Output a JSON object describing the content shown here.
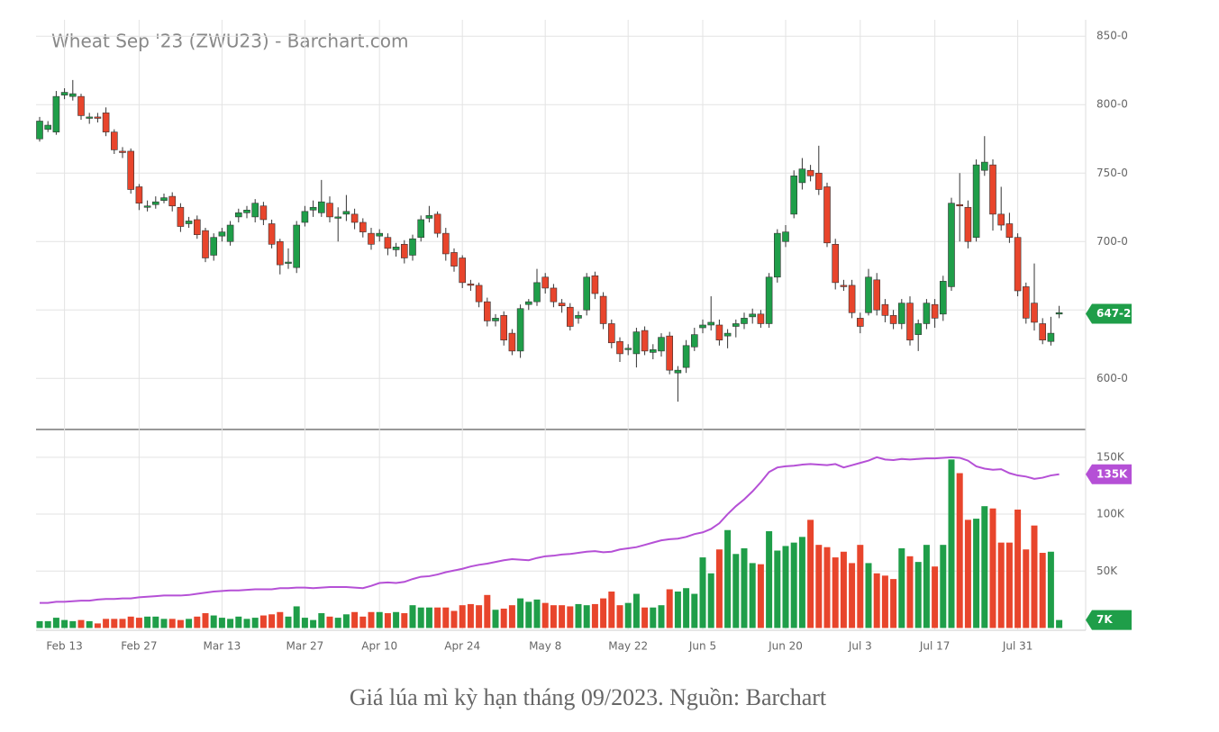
{
  "chart_data": {
    "type": "candlestick",
    "title": "Wheat Sep '23 (ZWU23) - Barchart.com",
    "categories": [
      null,
      null,
      null,
      "Feb 13",
      null,
      null,
      null,
      null,
      null,
      null,
      null,
      null,
      "Feb 27",
      null,
      null,
      null,
      null,
      null,
      null,
      null,
      null,
      null,
      "Mar 13",
      null,
      null,
      null,
      null,
      null,
      null,
      null,
      null,
      null,
      "Mar 27",
      null,
      null,
      null,
      null,
      null,
      null,
      null,
      null,
      "Apr 10",
      null,
      null,
      null,
      null,
      null,
      null,
      null,
      null,
      null,
      "Apr 24",
      null,
      null,
      null,
      null,
      null,
      null,
      null,
      null,
      null,
      "May 8",
      null,
      null,
      null,
      null,
      null,
      null,
      null,
      null,
      null,
      "May 22",
      null,
      null,
      null,
      null,
      null,
      null,
      null,
      null,
      "Jun 5",
      null,
      null,
      null,
      null,
      null,
      null,
      null,
      null,
      null,
      "Jun 20",
      null,
      null,
      null,
      null,
      null,
      null,
      null,
      null,
      "Jul 3",
      null,
      null,
      null,
      null,
      null,
      null,
      null,
      null,
      "Jul 17",
      null,
      null,
      null,
      null,
      null,
      null,
      null,
      null,
      null,
      "Jul 31",
      null,
      null,
      null,
      null,
      null
    ],
    "open": [
      775,
      782,
      780,
      807,
      806,
      806,
      790,
      791,
      794,
      780,
      766,
      766,
      740,
      725,
      727,
      730,
      733,
      725,
      713,
      716,
      708,
      690,
      704,
      700,
      718,
      721,
      718,
      726,
      713,
      700,
      684,
      681,
      714,
      723,
      721,
      728,
      717,
      720,
      720,
      714,
      706,
      704,
      703,
      694,
      698,
      690,
      703,
      717,
      720,
      706,
      692,
      688,
      669,
      668,
      656,
      642,
      646,
      633,
      620,
      654,
      656,
      674,
      666,
      655,
      652,
      644,
      650,
      675,
      660,
      640,
      627,
      621,
      618,
      635,
      619,
      620,
      631,
      604,
      608,
      623,
      637,
      639,
      639,
      631,
      638,
      640,
      645,
      647,
      640,
      674,
      700,
      720,
      743,
      752,
      750,
      740,
      698,
      668,
      668,
      644,
      648,
      672,
      654,
      646,
      640,
      655,
      632,
      640,
      654,
      647,
      667,
      727,
      725,
      703,
      752,
      756,
      720,
      713,
      703,
      667,
      655,
      640,
      627,
      647
    ],
    "high": [
      791,
      788,
      810,
      812,
      818,
      808,
      794,
      794,
      798,
      782,
      769,
      768,
      742,
      730,
      733,
      735,
      736,
      728,
      718,
      719,
      710,
      706,
      710,
      715,
      724,
      726,
      731,
      729,
      716,
      702,
      695,
      715,
      726,
      730,
      745,
      733,
      725,
      734,
      724,
      717,
      710,
      709,
      706,
      699,
      701,
      705,
      719,
      726,
      722,
      710,
      695,
      690,
      672,
      670,
      659,
      647,
      649,
      636,
      654,
      658,
      680,
      677,
      669,
      658,
      655,
      649,
      677,
      678,
      663,
      643,
      630,
      625,
      637,
      638,
      625,
      633,
      634,
      609,
      628,
      637,
      643,
      660,
      643,
      636,
      643,
      648,
      651,
      650,
      677,
      709,
      712,
      752,
      761,
      756,
      770,
      743,
      702,
      672,
      672,
      648,
      680,
      677,
      658,
      650,
      658,
      660,
      643,
      658,
      658,
      675,
      732,
      750,
      730,
      760,
      777,
      760,
      740,
      721,
      706,
      670,
      684,
      644,
      645,
      653
    ],
    "low": [
      773,
      780,
      778,
      804,
      803,
      789,
      786,
      787,
      777,
      764,
      761,
      735,
      723,
      722,
      724,
      728,
      722,
      707,
      710,
      702,
      685,
      686,
      700,
      697,
      714,
      717,
      714,
      712,
      695,
      676,
      680,
      677,
      711,
      718,
      718,
      714,
      700,
      715,
      709,
      703,
      694,
      700,
      690,
      689,
      684,
      686,
      700,
      714,
      703,
      686,
      678,
      666,
      664,
      652,
      638,
      638,
      624,
      617,
      615,
      650,
      653,
      662,
      652,
      648,
      635,
      640,
      646,
      658,
      636,
      622,
      612,
      617,
      608,
      617,
      614,
      616,
      603,
      583,
      604,
      620,
      633,
      635,
      624,
      622,
      630,
      636,
      640,
      637,
      637,
      670,
      696,
      717,
      738,
      744,
      734,
      696,
      665,
      664,
      644,
      633,
      646,
      646,
      641,
      636,
      636,
      624,
      620,
      636,
      637,
      642,
      664,
      700,
      695,
      700,
      748,
      708,
      708,
      699,
      660,
      640,
      635,
      625,
      624,
      644
    ],
    "close": [
      788,
      785,
      806,
      809,
      808,
      792,
      791,
      790,
      780,
      767,
      765,
      738,
      728,
      726,
      729,
      732,
      726,
      711,
      715,
      705,
      688,
      703,
      707,
      712,
      721,
      723,
      728,
      716,
      698,
      683,
      685,
      712,
      722,
      725,
      729,
      718,
      718,
      722,
      714,
      707,
      698,
      706,
      695,
      696,
      688,
      702,
      716,
      719,
      706,
      691,
      682,
      670,
      668,
      656,
      642,
      644,
      628,
      620,
      651,
      656,
      670,
      666,
      656,
      653,
      638,
      646,
      674,
      662,
      640,
      626,
      618,
      622,
      634,
      620,
      621,
      630,
      606,
      606,
      624,
      632,
      639,
      641,
      628,
      633,
      640,
      644,
      647,
      640,
      674,
      706,
      707,
      748,
      753,
      748,
      738,
      699,
      670,
      667,
      648,
      638,
      674,
      650,
      646,
      640,
      655,
      628,
      640,
      655,
      644,
      671,
      728,
      726,
      700,
      756,
      758,
      720,
      712,
      703,
      664,
      644,
      641,
      628,
      633,
      648
    ],
    "up_color": "#1f9e49",
    "down_color": "#e8452c",
    "ylim": [
      564,
      862
    ],
    "yticks": [
      {
        "value": 600,
        "label": "600-0"
      },
      {
        "value": 650,
        "label": "650-0"
      },
      {
        "value": 700,
        "label": "700-0"
      },
      {
        "value": 750,
        "label": "750-0"
      },
      {
        "value": 800,
        "label": "800-0"
      },
      {
        "value": 850,
        "label": "850-0"
      }
    ],
    "price_badge": {
      "value": 647.25,
      "label": "647-2"
    },
    "volume": [
      6000,
      6000,
      9000,
      7000,
      6000,
      7000,
      6000,
      4000,
      8000,
      8000,
      8000,
      10000,
      9000,
      10000,
      10000,
      8000,
      8000,
      7000,
      8000,
      10000,
      13000,
      11000,
      9000,
      8000,
      10000,
      8000,
      9000,
      11000,
      12000,
      14000,
      10000,
      19000,
      9000,
      7000,
      13000,
      10000,
      9000,
      12000,
      14000,
      10000,
      14000,
      14000,
      13000,
      14000,
      13000,
      20000,
      18000,
      18000,
      18000,
      18000,
      15000,
      20000,
      21000,
      20000,
      29000,
      16000,
      17000,
      20000,
      26000,
      23000,
      25000,
      22000,
      20000,
      20000,
      19000,
      21000,
      20000,
      21000,
      26000,
      32000,
      20000,
      22000,
      30000,
      18000,
      18000,
      20000,
      34000,
      32000,
      35000,
      30000,
      62000,
      48000,
      69000,
      86000,
      65000,
      70000,
      57000,
      56000,
      85000,
      68000,
      72000,
      75000,
      80000,
      95000,
      73000,
      71000,
      62000,
      67000,
      57000,
      73000,
      57000,
      48000,
      46000,
      43000,
      70000,
      63000,
      58000,
      73000,
      54000,
      73000,
      148000,
      136000,
      95000,
      96000,
      107000,
      105000,
      75000,
      75000,
      104000,
      69000,
      90000,
      66000,
      67000,
      7000
    ],
    "open_interest": [
      22000,
      22000,
      23000,
      23000,
      23500,
      24000,
      24000,
      25000,
      25500,
      25500,
      26000,
      26000,
      27000,
      27500,
      28000,
      28500,
      28500,
      28500,
      29000,
      30000,
      31000,
      32000,
      32500,
      33000,
      33000,
      33500,
      34000,
      34000,
      34000,
      35000,
      35000,
      35500,
      35500,
      35000,
      35500,
      36000,
      36000,
      36000,
      35500,
      35000,
      37000,
      39500,
      40000,
      39500,
      40500,
      43000,
      45000,
      45500,
      47000,
      49000,
      50500,
      52000,
      54000,
      55500,
      56500,
      58000,
      59500,
      60500,
      60000,
      59500,
      61500,
      63000,
      63500,
      64500,
      65000,
      66000,
      67000,
      67500,
      66500,
      67000,
      69000,
      70000,
      71000,
      73000,
      75000,
      77000,
      78000,
      78500,
      80000,
      82500,
      84000,
      87000,
      92000,
      100000,
      107000,
      113000,
      120000,
      128000,
      137000,
      141000,
      142000,
      142500,
      143500,
      144000,
      143500,
      143000,
      144000,
      141000,
      143000,
      145000,
      147000,
      150000,
      148000,
      147500,
      148500,
      148000,
      148500,
      149000,
      149000,
      149500,
      150000,
      149500,
      147000,
      142000,
      140000,
      139000,
      139500,
      136000,
      134000,
      133000,
      131000,
      132000,
      134000,
      135000
    ],
    "oi_color": "#b550d6",
    "y2lim": [
      -2000,
      172000
    ],
    "y2ticks": [
      {
        "value": 50000,
        "label": "50K"
      },
      {
        "value": 100000,
        "label": "100K"
      },
      {
        "value": 150000,
        "label": "150K"
      }
    ],
    "oi_badge": {
      "value": 135000,
      "label": "135K"
    },
    "volume_badge": {
      "value": 7000,
      "label": "7K"
    },
    "grid": true
  },
  "caption": "Giá lúa mì kỳ hạn tháng 09/2023. Nguồn: Barchart"
}
